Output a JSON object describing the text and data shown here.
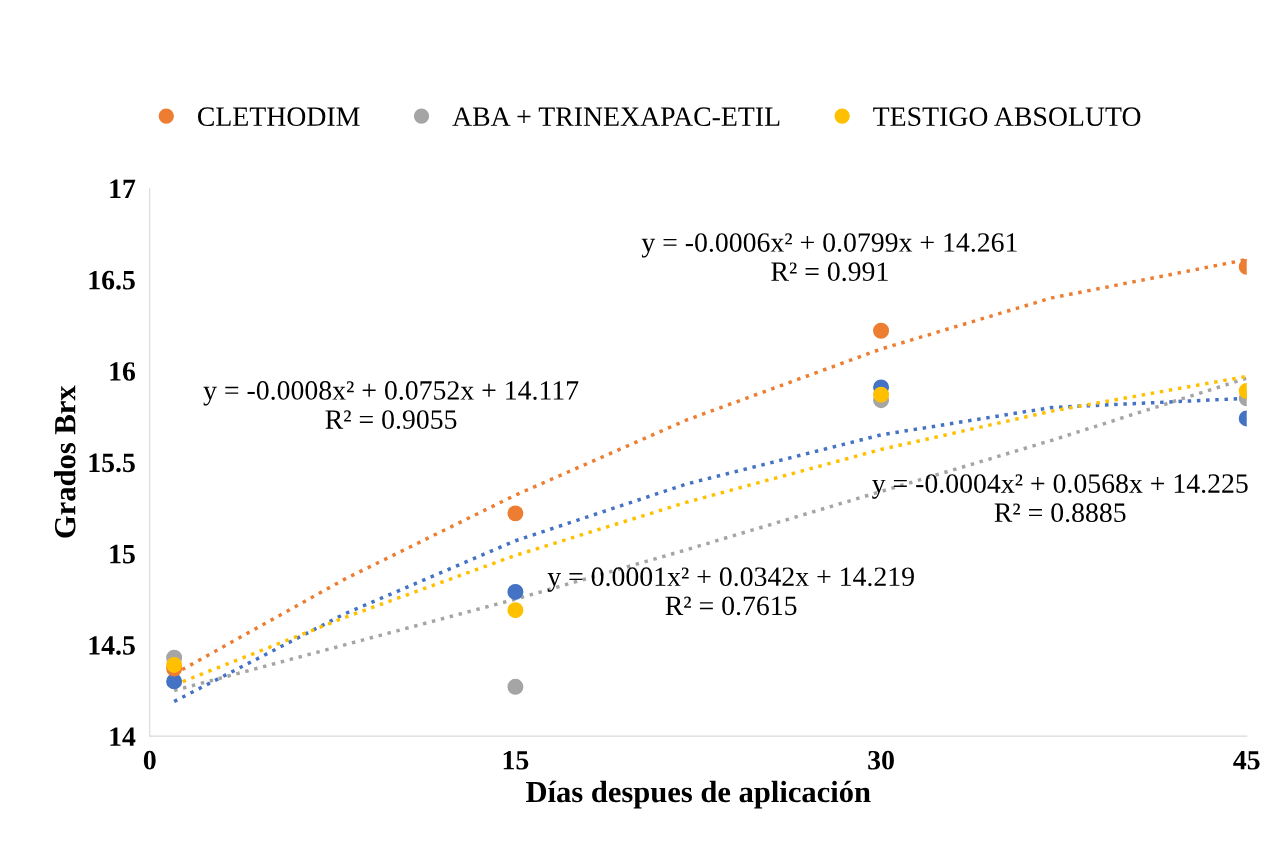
{
  "chart_data": {
    "type": "scatter",
    "xlabel": "Días despues de aplicación",
    "ylabel": "Grados Brx",
    "x": [
      1,
      15,
      30,
      45
    ],
    "series": [
      {
        "color": "#4472c4",
        "values": [
          14.3,
          14.79,
          15.91,
          15.74
        ]
      },
      {
        "name": "CLETHODIM",
        "color": "#ed7d31",
        "values": [
          14.37,
          15.22,
          16.22,
          16.57
        ]
      },
      {
        "name": "ABA + TRINEXAPAC-ETIL",
        "color": "#a5a5a5",
        "values": [
          14.43,
          14.27,
          15.84,
          15.85
        ]
      },
      {
        "name": "TESTIGO ABSOLUTO",
        "color": "#ffc000",
        "values": [
          14.39,
          14.69,
          15.87,
          15.89
        ]
      },
      {
        "type": "line",
        "marker": "none",
        "color": "#4472c4",
        "line_style": "dotted",
        "x": [
          1,
          8,
          15,
          22,
          30,
          37,
          45
        ],
        "values": [
          14.19,
          14.67,
          15.07,
          15.38,
          15.65,
          15.8,
          15.85
        ]
      },
      {
        "type": "line",
        "marker": "none",
        "color": "#ed7d31",
        "line_style": "dotted",
        "x": [
          1,
          8,
          15,
          22,
          30,
          37,
          45
        ],
        "values": [
          14.34,
          14.86,
          15.32,
          15.73,
          16.12,
          16.4,
          16.61
        ]
      },
      {
        "type": "line",
        "marker": "none",
        "color": "#a5a5a5",
        "line_style": "dotted",
        "x": [
          1,
          8,
          15,
          22,
          30,
          37,
          45
        ],
        "values": [
          14.25,
          14.5,
          14.75,
          15.02,
          15.34,
          15.62,
          15.96
        ]
      },
      {
        "type": "line",
        "marker": "none",
        "color": "#ffc000",
        "line_style": "dotted",
        "x": [
          1,
          8,
          15,
          22,
          30,
          37,
          45
        ],
        "values": [
          14.28,
          14.65,
          14.99,
          15.28,
          15.57,
          15.78,
          15.97
        ]
      }
    ],
    "xlim": [
      0,
      45
    ],
    "xticks": [
      0,
      15,
      30,
      45
    ],
    "ylim": [
      14,
      17
    ],
    "yticks": [
      14,
      14.5,
      15,
      15.5,
      16,
      16.5,
      17
    ],
    "marker": "circle",
    "grid": false,
    "legend": "top",
    "annotations": [
      "y = -0.0006x² + 0.0799x + 14.261\nR² = 0.991",
      "y = -0.0008x² + 0.0752x + 14.117\nR² = 0.9055",
      "y = -0.0004x² + 0.0568x + 14.225\nR² = 0.8885",
      "y = 0.0001x² + 0.0342x + 14.219\nR² = 0.7615"
    ]
  }
}
